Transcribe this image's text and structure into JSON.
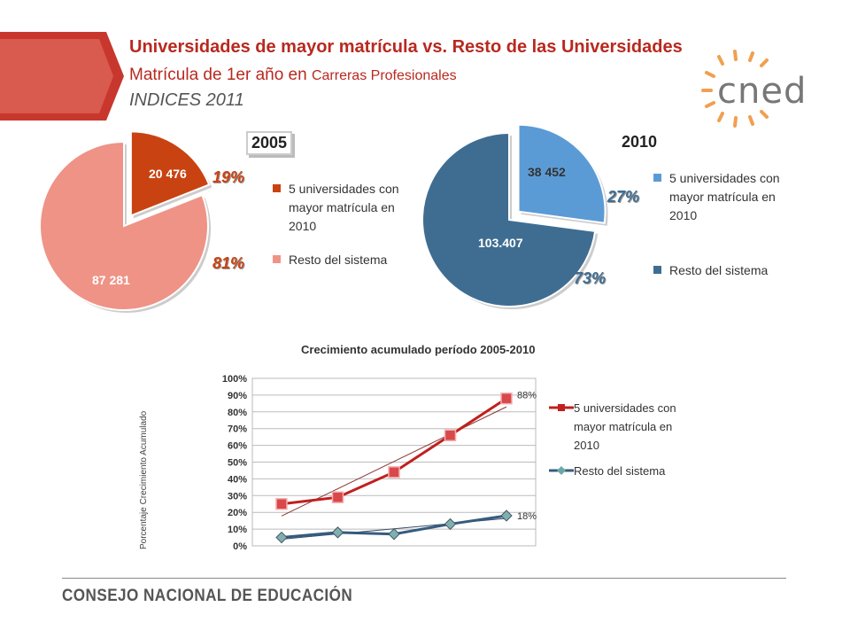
{
  "header": {
    "title": "Universidades de mayor matrícula vs. Resto de las Universidades",
    "subtitle_main": "Matrícula de 1er año en ",
    "subtitle_small": "Carreras Profesionales",
    "subtitle_index": "INDICES 2011"
  },
  "logo": {
    "text": "cned"
  },
  "footer": {
    "text": "CONSEJO NACIONAL DE EDUCACIÓN"
  },
  "colors": {
    "brand_red": "#b8291f",
    "pie2005_top": "#c94312",
    "pie2005_rest": "#ef9387",
    "pie2010_top": "#5b9bd5",
    "pie2010_rest": "#3f6d92",
    "line_top": "#c0201e",
    "line_rest": "#355c7d"
  },
  "chart_data": [
    {
      "type": "pie",
      "title": "2005",
      "slices": [
        {
          "name": "5 universidades con mayor matrícula en 2010",
          "value": 20476,
          "value_label": "20 476",
          "pct_label": "19%"
        },
        {
          "name": "Resto del sistema",
          "value": 87281,
          "value_label": "87 281",
          "pct_label": "81%"
        }
      ],
      "legend": [
        "5 universidades con mayor matrícula en 2010",
        "Resto del sistema"
      ],
      "legend_placement": "right"
    },
    {
      "type": "pie",
      "title": "2010",
      "slices": [
        {
          "name": "5 universidades con mayor matrícula en 2010",
          "value": 38452,
          "value_label": "38 452",
          "pct_label": "27%"
        },
        {
          "name": "Resto del sistema",
          "value": 103407,
          "value_label": "103.407",
          "pct_label": "73%"
        }
      ],
      "legend": [
        "5 universidades con mayor matrícula en 2010",
        "Resto del sistema"
      ],
      "legend_placement": "right"
    },
    {
      "type": "line",
      "title": "Crecimiento acumulado período 2005-2010",
      "ylabel": "Porcentaje Crecimiento Acumulado",
      "ylim": [
        0,
        100
      ],
      "yticks": [
        "0%",
        "10%",
        "20%",
        "30%",
        "40%",
        "50%",
        "60%",
        "70%",
        "80%",
        "90%",
        "100%"
      ],
      "grid": true,
      "legend_placement": "right",
      "series": [
        {
          "name": "5 universidades con mayor matrícula en 2010",
          "values": [
            25,
            29,
            44,
            66,
            88
          ],
          "end_label": "88%"
        },
        {
          "name": "Resto del sistema",
          "values": [
            5,
            8,
            7,
            13,
            18
          ],
          "end_label": "18%"
        }
      ]
    }
  ]
}
